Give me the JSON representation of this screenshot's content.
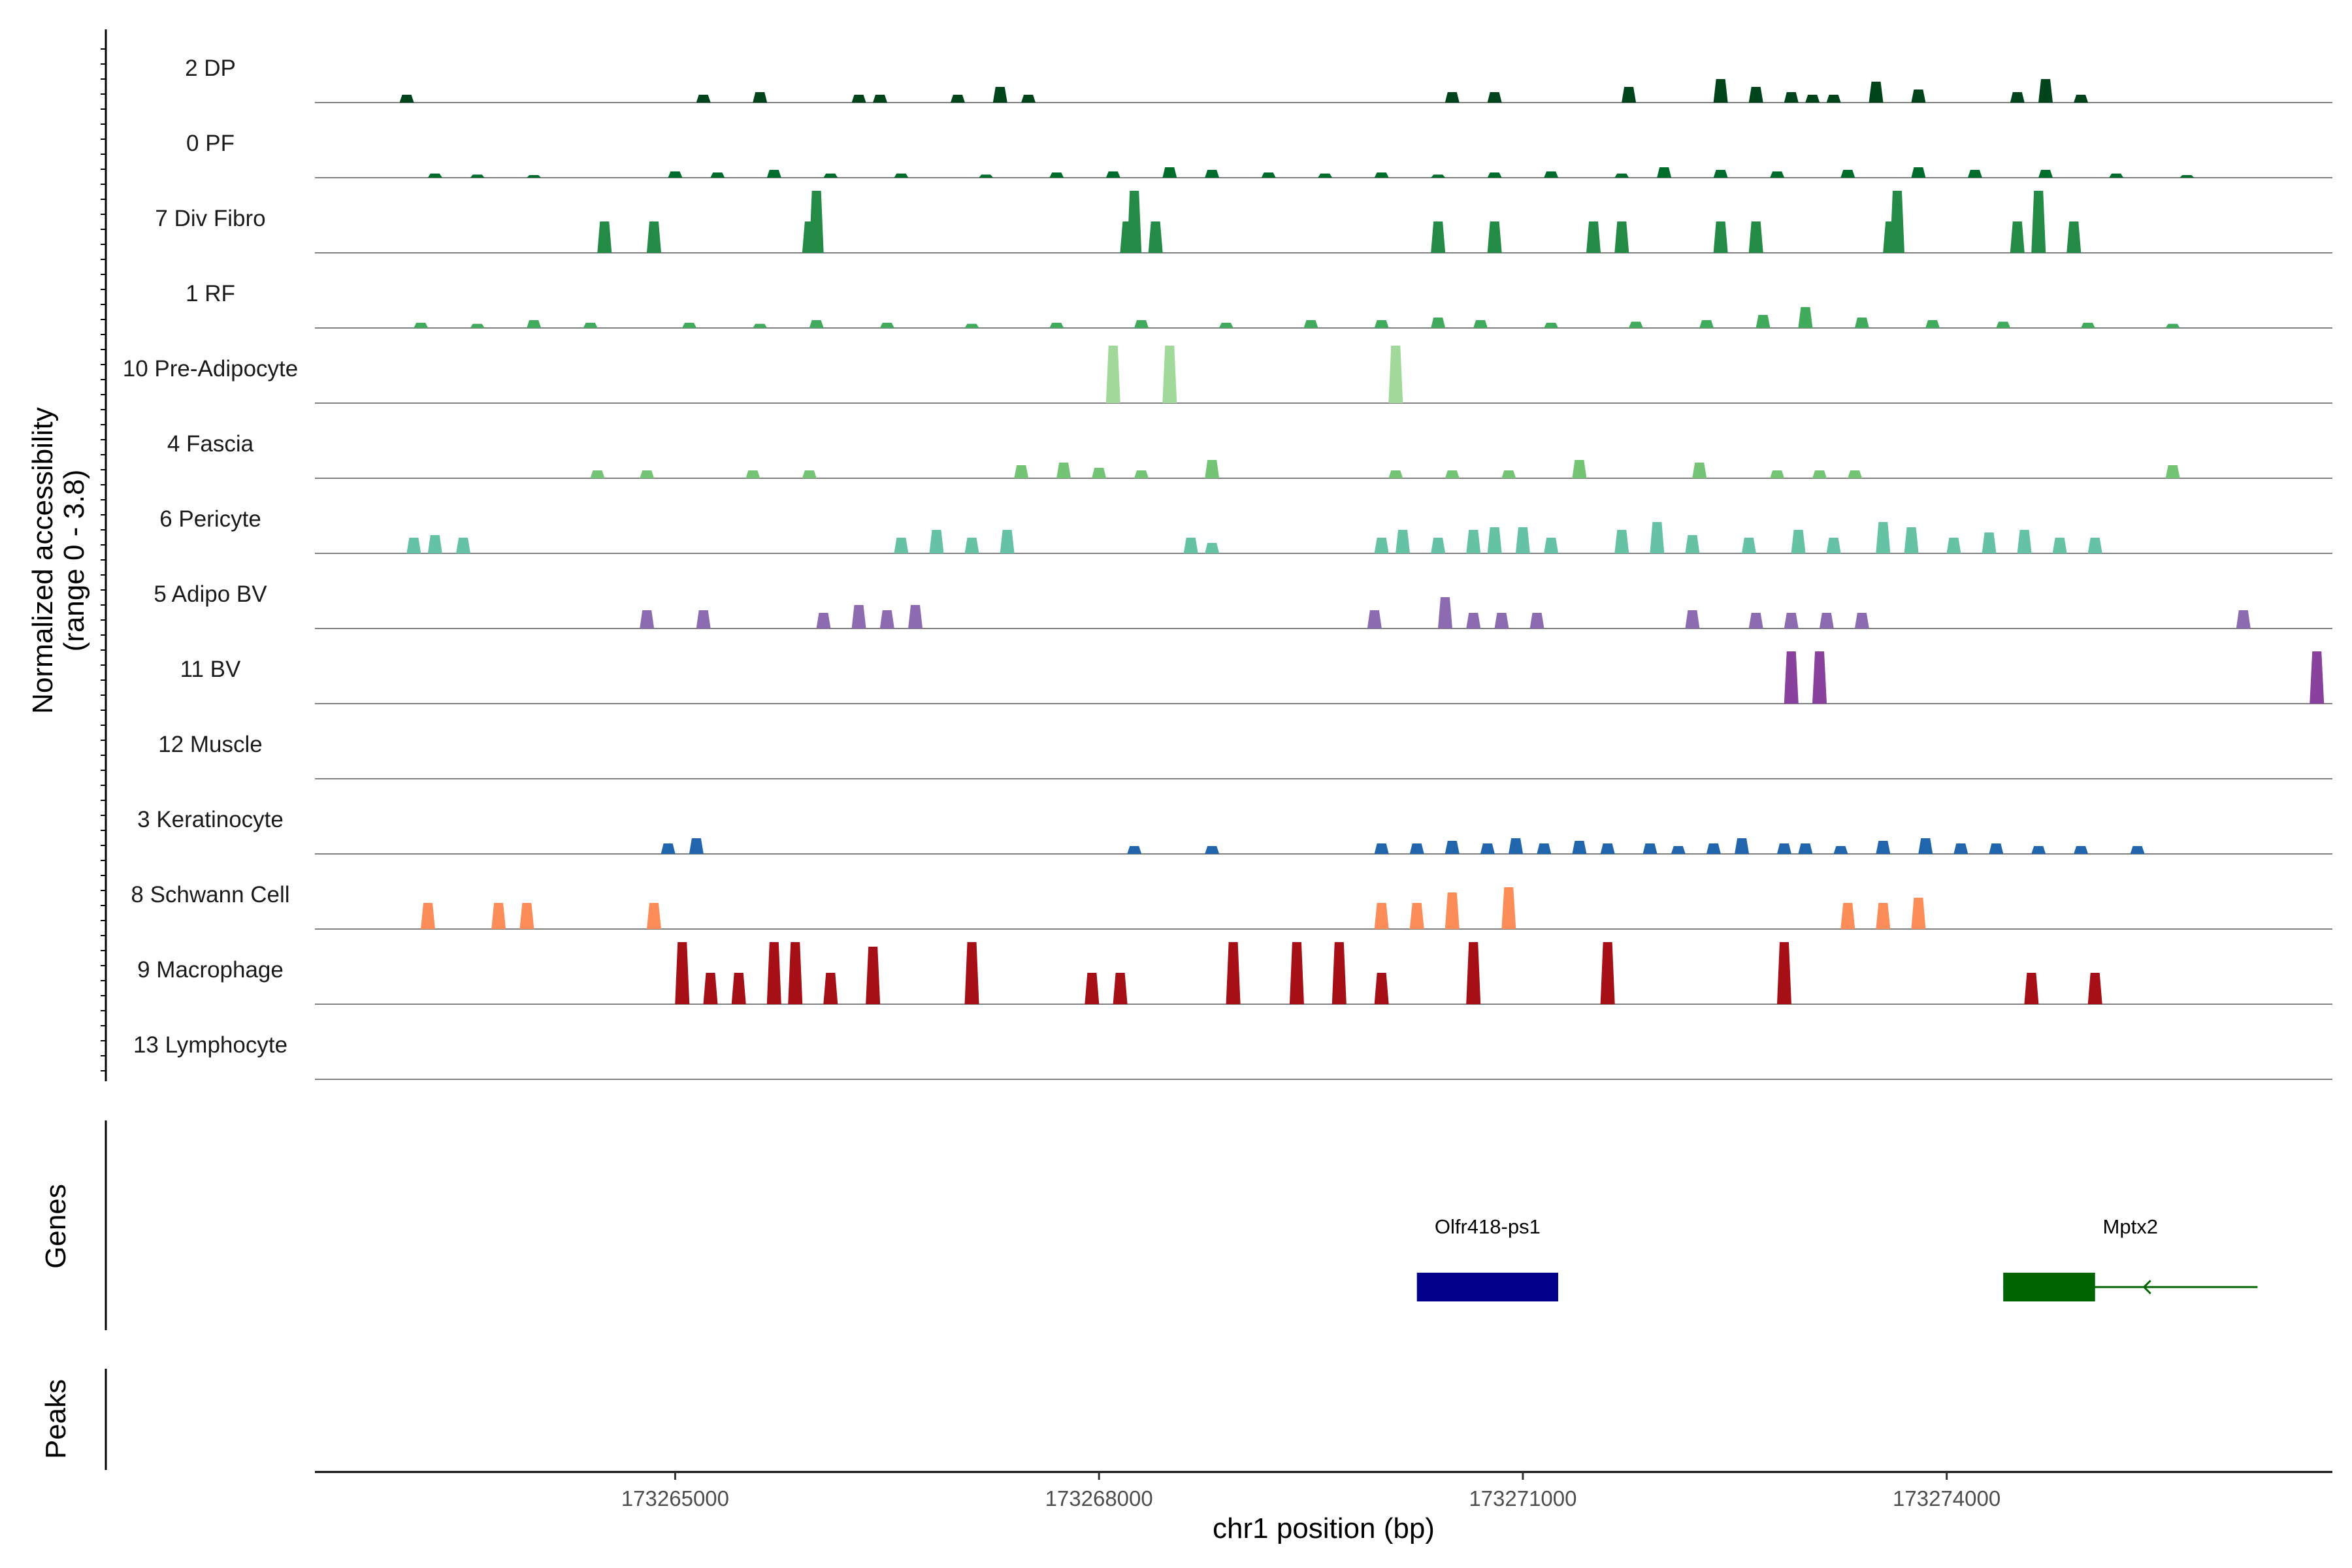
{
  "chart_data": {
    "type": "area",
    "title": "",
    "ylabel_line1": "Normalized accessibility",
    "ylabel_line2": "(range 0 - 3.8)",
    "y_range": [
      0,
      3.8
    ],
    "xlabel": "chr1 position (bp)",
    "xlim": [
      173262450,
      173276730
    ],
    "xticks": [
      173265000,
      173268000,
      173271000,
      173274000
    ],
    "xtick_labels": [
      "173265000",
      "173268000",
      "173271000",
      "173274000"
    ],
    "tracks": [
      {
        "name": "2 DP",
        "color": "#00441b",
        "peaks": [
          [
            173263100,
            0.15
          ],
          [
            173265200,
            0.15
          ],
          [
            173265600,
            0.2
          ],
          [
            173266300,
            0.15
          ],
          [
            173266450,
            0.15
          ],
          [
            173267000,
            0.15
          ],
          [
            173267300,
            0.3
          ],
          [
            173267500,
            0.15
          ],
          [
            173270500,
            0.2
          ],
          [
            173270800,
            0.2
          ],
          [
            173271750,
            0.3
          ],
          [
            173272400,
            0.45
          ],
          [
            173272650,
            0.3
          ],
          [
            173272900,
            0.2
          ],
          [
            173273050,
            0.15
          ],
          [
            173273200,
            0.15
          ],
          [
            173273500,
            0.4
          ],
          [
            173273800,
            0.25
          ],
          [
            173274500,
            0.2
          ],
          [
            173274700,
            0.45
          ],
          [
            173274950,
            0.15
          ]
        ]
      },
      {
        "name": "0 PF",
        "color": "#006d2c",
        "peaks": [
          [
            173263300,
            0.08
          ],
          [
            173263600,
            0.06
          ],
          [
            173264000,
            0.05
          ],
          [
            173265000,
            0.12
          ],
          [
            173265300,
            0.1
          ],
          [
            173265700,
            0.15
          ],
          [
            173266100,
            0.08
          ],
          [
            173266600,
            0.08
          ],
          [
            173267200,
            0.06
          ],
          [
            173267700,
            0.1
          ],
          [
            173268100,
            0.12
          ],
          [
            173268500,
            0.2
          ],
          [
            173268800,
            0.15
          ],
          [
            173269200,
            0.1
          ],
          [
            173269600,
            0.08
          ],
          [
            173270000,
            0.1
          ],
          [
            173270400,
            0.06
          ],
          [
            173270800,
            0.1
          ],
          [
            173271200,
            0.12
          ],
          [
            173271700,
            0.08
          ],
          [
            173272000,
            0.2
          ],
          [
            173272400,
            0.15
          ],
          [
            173272800,
            0.12
          ],
          [
            173273300,
            0.15
          ],
          [
            173273800,
            0.2
          ],
          [
            173274200,
            0.15
          ],
          [
            173274700,
            0.15
          ],
          [
            173275200,
            0.08
          ],
          [
            173275700,
            0.05
          ]
        ]
      },
      {
        "name": "7 Div Fibro",
        "color": "#238b45",
        "peaks": [
          [
            173264500,
            0.6
          ],
          [
            173264850,
            0.6
          ],
          [
            173265950,
            0.6
          ],
          [
            173266000,
            1.2
          ],
          [
            173268200,
            0.6
          ],
          [
            173268250,
            1.6
          ],
          [
            173268400,
            0.6
          ],
          [
            173270400,
            0.6
          ],
          [
            173270800,
            0.6
          ],
          [
            173271500,
            0.6
          ],
          [
            173271700,
            0.6
          ],
          [
            173272400,
            0.6
          ],
          [
            173272650,
            0.6
          ],
          [
            173273600,
            0.6
          ],
          [
            173273650,
            1.2
          ],
          [
            173274500,
            0.6
          ],
          [
            173274650,
            1.6
          ],
          [
            173274900,
            0.6
          ]
        ]
      },
      {
        "name": "1 RF",
        "color": "#41ab5d",
        "peaks": [
          [
            173263200,
            0.1
          ],
          [
            173263600,
            0.08
          ],
          [
            173264000,
            0.15
          ],
          [
            173264400,
            0.1
          ],
          [
            173265100,
            0.1
          ],
          [
            173265600,
            0.08
          ],
          [
            173266000,
            0.15
          ],
          [
            173266500,
            0.1
          ],
          [
            173267100,
            0.08
          ],
          [
            173267700,
            0.1
          ],
          [
            173268300,
            0.15
          ],
          [
            173268900,
            0.1
          ],
          [
            173269500,
            0.15
          ],
          [
            173270000,
            0.15
          ],
          [
            173270400,
            0.2
          ],
          [
            173270700,
            0.15
          ],
          [
            173271200,
            0.1
          ],
          [
            173271800,
            0.12
          ],
          [
            173272300,
            0.15
          ],
          [
            173272700,
            0.25
          ],
          [
            173273000,
            0.4
          ],
          [
            173273400,
            0.2
          ],
          [
            173273900,
            0.15
          ],
          [
            173274400,
            0.12
          ],
          [
            173275000,
            0.1
          ],
          [
            173275600,
            0.08
          ]
        ]
      },
      {
        "name": "10 Pre-Adipocyte",
        "color": "#a1d99b",
        "peaks": [
          [
            173268100,
            1.1
          ],
          [
            173268500,
            1.1
          ],
          [
            173270100,
            1.1
          ]
        ]
      },
      {
        "name": "4 Fascia",
        "color": "#74c476",
        "peaks": [
          [
            173264450,
            0.15
          ],
          [
            173264800,
            0.15
          ],
          [
            173265550,
            0.15
          ],
          [
            173265950,
            0.15
          ],
          [
            173267450,
            0.25
          ],
          [
            173267750,
            0.3
          ],
          [
            173268000,
            0.2
          ],
          [
            173268300,
            0.15
          ],
          [
            173268800,
            0.35
          ],
          [
            173270100,
            0.15
          ],
          [
            173270500,
            0.15
          ],
          [
            173270900,
            0.15
          ],
          [
            173271400,
            0.35
          ],
          [
            173272250,
            0.3
          ],
          [
            173272800,
            0.15
          ],
          [
            173273100,
            0.15
          ],
          [
            173273350,
            0.15
          ],
          [
            173275600,
            0.25
          ]
        ]
      },
      {
        "name": "6 Pericyte",
        "color": "#66c2a4",
        "peaks": [
          [
            173263150,
            0.3
          ],
          [
            173263300,
            0.35
          ],
          [
            173263500,
            0.3
          ],
          [
            173266600,
            0.3
          ],
          [
            173266850,
            0.45
          ],
          [
            173267100,
            0.3
          ],
          [
            173267350,
            0.45
          ],
          [
            173268650,
            0.3
          ],
          [
            173268800,
            0.2
          ],
          [
            173270000,
            0.3
          ],
          [
            173270150,
            0.45
          ],
          [
            173270400,
            0.3
          ],
          [
            173270650,
            0.45
          ],
          [
            173270800,
            0.5
          ],
          [
            173271000,
            0.5
          ],
          [
            173271200,
            0.3
          ],
          [
            173271700,
            0.45
          ],
          [
            173271950,
            0.6
          ],
          [
            173272200,
            0.35
          ],
          [
            173272600,
            0.3
          ],
          [
            173272950,
            0.45
          ],
          [
            173273200,
            0.3
          ],
          [
            173273550,
            0.6
          ],
          [
            173273750,
            0.5
          ],
          [
            173274050,
            0.3
          ],
          [
            173274300,
            0.4
          ],
          [
            173274550,
            0.45
          ],
          [
            173274800,
            0.3
          ],
          [
            173275050,
            0.3
          ]
        ]
      },
      {
        "name": "5 Adipo BV",
        "color": "#8c6bb1",
        "peaks": [
          [
            173264800,
            0.35
          ],
          [
            173265200,
            0.35
          ],
          [
            173266050,
            0.3
          ],
          [
            173266300,
            0.45
          ],
          [
            173266500,
            0.35
          ],
          [
            173266700,
            0.45
          ],
          [
            173269950,
            0.35
          ],
          [
            173270450,
            0.6
          ],
          [
            173270650,
            0.3
          ],
          [
            173270850,
            0.3
          ],
          [
            173271100,
            0.3
          ],
          [
            173272200,
            0.35
          ],
          [
            173272650,
            0.3
          ],
          [
            173272900,
            0.3
          ],
          [
            173273150,
            0.3
          ],
          [
            173273400,
            0.3
          ],
          [
            173276100,
            0.35
          ]
        ]
      },
      {
        "name": "11 BV",
        "color": "#88419d",
        "peaks": [
          [
            173272900,
            1.0
          ],
          [
            173273100,
            1.0
          ],
          [
            173276620,
            1.0
          ]
        ]
      },
      {
        "name": "12 Muscle",
        "color": "#6a51a3",
        "peaks": []
      },
      {
        "name": "3 Keratinocyte",
        "color": "#2166ac",
        "peaks": [
          [
            173264950,
            0.2
          ],
          [
            173265150,
            0.3
          ],
          [
            173268250,
            0.15
          ],
          [
            173268800,
            0.15
          ],
          [
            173270000,
            0.2
          ],
          [
            173270250,
            0.2
          ],
          [
            173270500,
            0.25
          ],
          [
            173270750,
            0.2
          ],
          [
            173270950,
            0.3
          ],
          [
            173271150,
            0.2
          ],
          [
            173271400,
            0.25
          ],
          [
            173271600,
            0.2
          ],
          [
            173271900,
            0.2
          ],
          [
            173272100,
            0.15
          ],
          [
            173272350,
            0.2
          ],
          [
            173272550,
            0.3
          ],
          [
            173272850,
            0.2
          ],
          [
            173273000,
            0.2
          ],
          [
            173273250,
            0.15
          ],
          [
            173273550,
            0.25
          ],
          [
            173273850,
            0.3
          ],
          [
            173274100,
            0.2
          ],
          [
            173274350,
            0.2
          ],
          [
            173274650,
            0.15
          ],
          [
            173274950,
            0.15
          ],
          [
            173275350,
            0.15
          ]
        ]
      },
      {
        "name": "8 Schwann Cell",
        "color": "#fc8d59",
        "peaks": [
          [
            173263250,
            0.5
          ],
          [
            173263750,
            0.5
          ],
          [
            173263950,
            0.5
          ],
          [
            173264850,
            0.5
          ],
          [
            173270000,
            0.5
          ],
          [
            173270250,
            0.5
          ],
          [
            173270500,
            0.7
          ],
          [
            173270900,
            0.8
          ],
          [
            173273300,
            0.5
          ],
          [
            173273550,
            0.5
          ],
          [
            173273800,
            0.6
          ]
        ]
      },
      {
        "name": "9 Macrophage",
        "color": "#a50f15",
        "peaks": [
          [
            173265050,
            1.2
          ],
          [
            173265250,
            0.6
          ],
          [
            173265450,
            0.6
          ],
          [
            173265700,
            1.2
          ],
          [
            173265850,
            1.2
          ],
          [
            173266100,
            0.6
          ],
          [
            173266400,
            1.1
          ],
          [
            173267100,
            1.2
          ],
          [
            173267950,
            0.6
          ],
          [
            173268150,
            0.6
          ],
          [
            173268950,
            1.2
          ],
          [
            173269400,
            1.2
          ],
          [
            173269700,
            1.2
          ],
          [
            173270000,
            0.6
          ],
          [
            173270650,
            1.2
          ],
          [
            173271600,
            1.2
          ],
          [
            173272850,
            1.2
          ],
          [
            173274600,
            0.6
          ],
          [
            173275050,
            0.6
          ]
        ]
      },
      {
        "name": "13 Lymphocyte",
        "color": "#969696",
        "peaks": []
      }
    ],
    "genes_track_label": "Genes",
    "peaks_track_label": "Peaks",
    "genes": [
      {
        "name": "Olfr418-ps1",
        "start": 173270250,
        "end": 173271250,
        "color": "#00008b",
        "strand": "+"
      },
      {
        "name": "Mptx2",
        "start": 173274400,
        "end": 173276200,
        "exon_start": 173274400,
        "exon_end": 173275050,
        "color": "#006400",
        "strand": "-"
      }
    ]
  }
}
